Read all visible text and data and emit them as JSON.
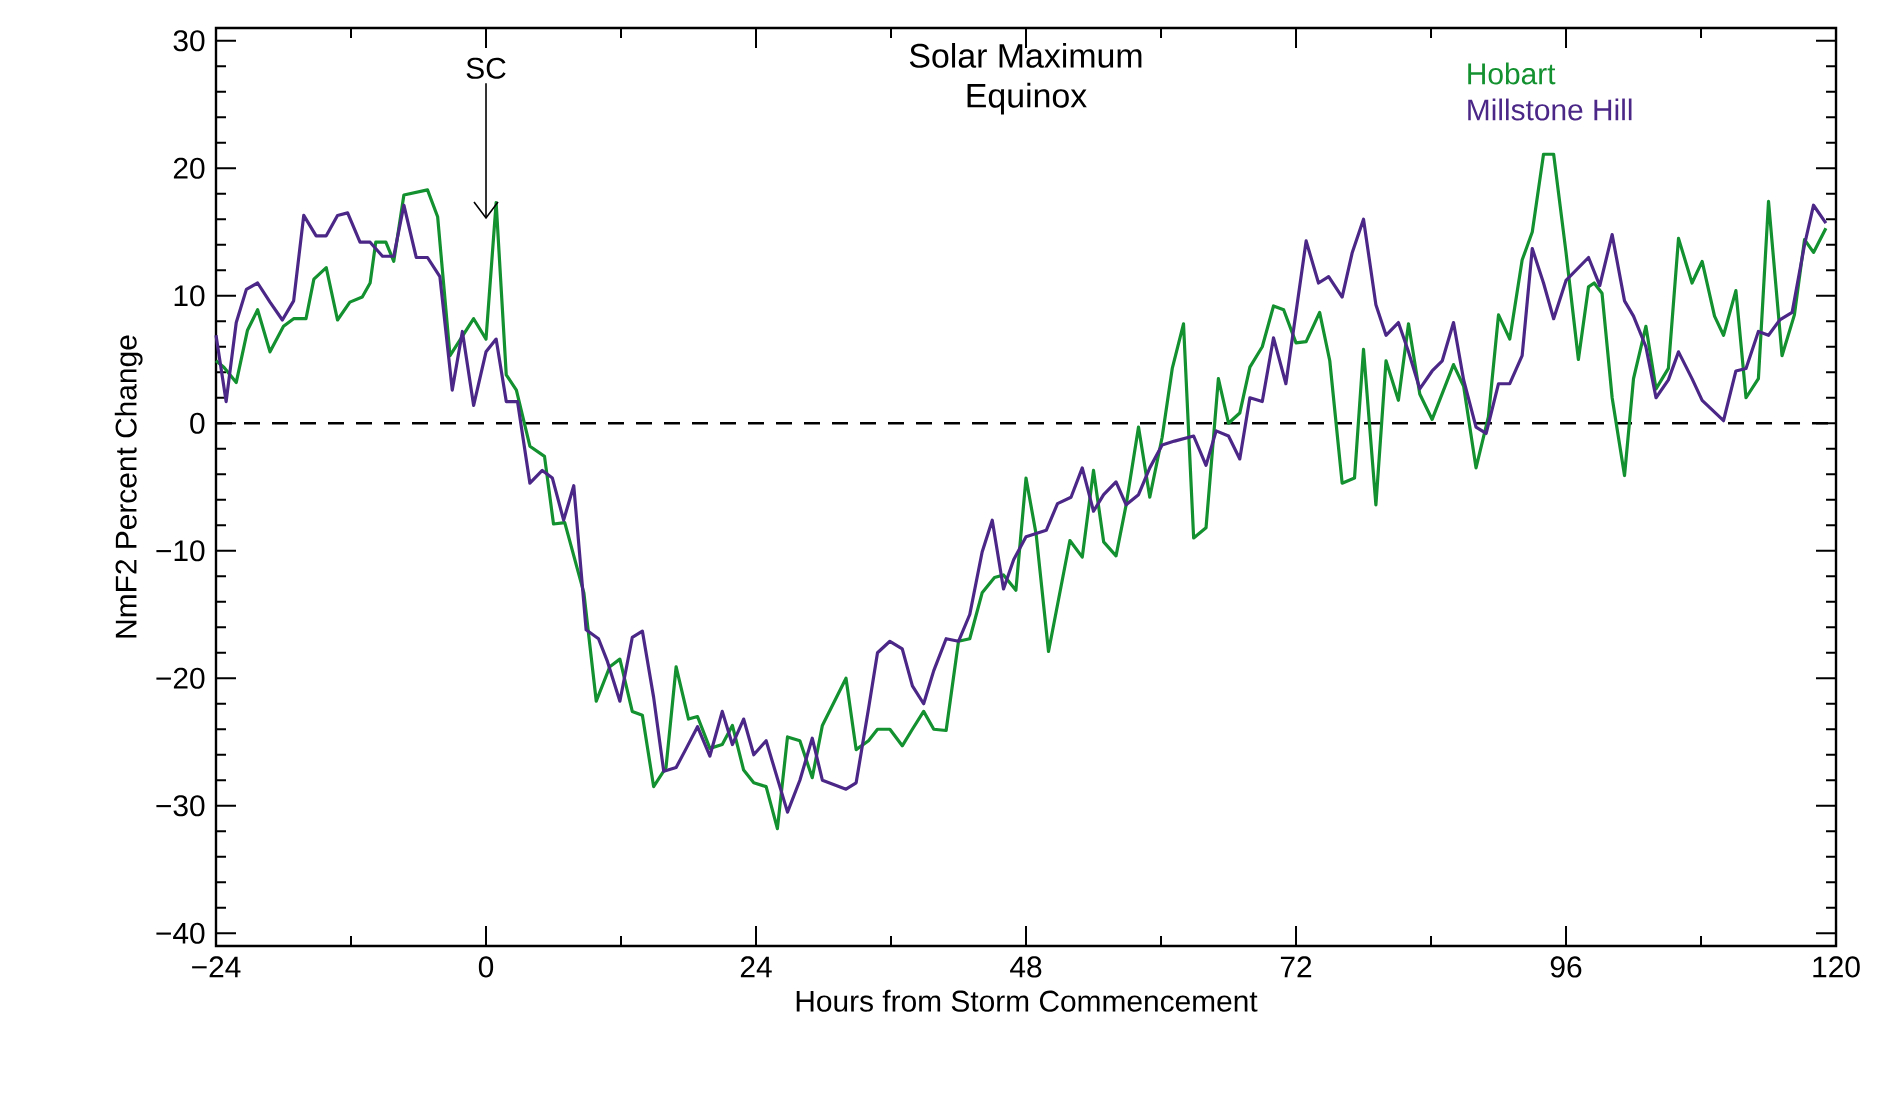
{
  "chart_data": {
    "type": "line",
    "title": "Solar Maximum",
    "subtitle": "Equinox",
    "xlabel": "Hours from Storm Commencement",
    "ylabel": "NmF2 Percent Change",
    "xlim": [
      -24,
      120
    ],
    "xticks": [
      {
        "value": -24,
        "label": "−24"
      },
      0,
      24,
      48,
      72,
      96,
      120
    ],
    "ylim": [
      -41,
      31
    ],
    "yticks": [
      {
        "value": -40,
        "label": "−40"
      },
      {
        "value": -30,
        "label": "−30"
      },
      {
        "value": -20,
        "label": "−20"
      },
      {
        "value": -10,
        "label": "−10"
      },
      0,
      10,
      20,
      30
    ],
    "legend": "top right",
    "grid": false,
    "line_style": "solid",
    "marker": "none",
    "ref_lines": [
      {
        "axis": "y",
        "value": 0,
        "line_style": "dashed",
        "color": "#000000"
      }
    ],
    "annotations": [
      {
        "text": "SC",
        "x": 0,
        "y": 16
      }
    ],
    "series": [
      {
        "name": "Hobart",
        "color": "#13902f",
        "x": [
          -24,
          -23.3,
          -22.2,
          -21.2,
          -20.3,
          -19.2,
          -18,
          -17.1,
          -16,
          -15.3,
          -14.2,
          -13.2,
          -12.1,
          -11,
          -10.3,
          -9.8,
          -8.9,
          -8.2,
          -7.3,
          -5.2,
          -4.3,
          -3.2,
          -1.1,
          0,
          0.9,
          1.8,
          2.7,
          3.9,
          5.2,
          6,
          7,
          8.7,
          9.8,
          11,
          11.9,
          13,
          13.9,
          14.9,
          16,
          16.9,
          18,
          18.8,
          19.9,
          21,
          21.9,
          22.9,
          23.8,
          24.9,
          25.9,
          26.8,
          27.9,
          29,
          29.9,
          32,
          32.9,
          34,
          34.8,
          35.9,
          37,
          37.9,
          38.9,
          39.8,
          40.9,
          42,
          43,
          44.1,
          45.2,
          46,
          47.1,
          48,
          48.9,
          50,
          51.9,
          53,
          54,
          54.9,
          56,
          56.9,
          58,
          59,
          60.1,
          61,
          62,
          62.9,
          64,
          65.1,
          66,
          67,
          67.9,
          69,
          70,
          70.9,
          72,
          72.9,
          74.1,
          75,
          76.1,
          77.2,
          78,
          79.1,
          80,
          81.1,
          82,
          83,
          84.1,
          86,
          86.9,
          88,
          89.1,
          90,
          91,
          92.1,
          93,
          94,
          94.9,
          96,
          97.1,
          98,
          98.5,
          99.2,
          100.1,
          101.2,
          102,
          103.1,
          104,
          105.1,
          106,
          107.2,
          108.1,
          109.2,
          110,
          111.1,
          112,
          113.1,
          114,
          115.2,
          116.3,
          117.2,
          118,
          119.1
        ],
        "values": [
          4.9,
          4.4,
          3.2,
          7.3,
          8.9,
          5.6,
          7.6,
          8.2,
          8.2,
          11.3,
          12.2,
          8.1,
          9.5,
          9.9,
          11,
          14.2,
          14.2,
          12.7,
          17.9,
          18.3,
          16.2,
          5.3,
          8.2,
          6.6,
          17.3,
          3.8,
          2.6,
          -1.8,
          -2.6,
          -7.9,
          -7.8,
          -13.3,
          -21.8,
          -19.1,
          -18.5,
          -22.6,
          -22.9,
          -28.5,
          -27,
          -19.1,
          -23.2,
          -23,
          -25.5,
          -25.2,
          -23.7,
          -27.2,
          -28.2,
          -28.5,
          -31.8,
          -24.6,
          -24.9,
          -27.8,
          -23.7,
          -20,
          -25.6,
          -24.9,
          -24,
          -24,
          -25.3,
          -24,
          -22.6,
          -24,
          -24.1,
          -17.1,
          -16.9,
          -13.3,
          -12.1,
          -11.9,
          -13.1,
          -4.3,
          -8.7,
          -17.9,
          -9.2,
          -10.5,
          -3.7,
          -9.3,
          -10.4,
          -6.4,
          -0.3,
          -5.8,
          -1.1,
          4.3,
          7.8,
          -9,
          -8.2,
          3.5,
          0,
          0.8,
          4.4,
          6,
          9.2,
          8.9,
          6.3,
          6.4,
          8.7,
          4.9,
          -4.7,
          -4.3,
          5.8,
          -6.4,
          4.9,
          1.8,
          7.8,
          2.3,
          0.3,
          4.6,
          2.9,
          -3.5,
          0.5,
          8.5,
          6.6,
          12.8,
          15,
          21.1,
          21.1,
          13.4,
          5,
          10.7,
          11,
          10.2,
          2,
          -4.1,
          3.5,
          7.6,
          2.7,
          4.3,
          14.5,
          11,
          12.7,
          8.4,
          6.9,
          10.4,
          2,
          3.5,
          17.4,
          5.3,
          8.5,
          14.4,
          13.4,
          15.3
        ]
      },
      {
        "name": "Millstone Hill",
        "color": "#4b2787",
        "x": [
          -24,
          -23.1,
          -22.2,
          -21.3,
          -20.3,
          -19.2,
          -18.1,
          -17.1,
          -16.2,
          -15.1,
          -14.2,
          -13.2,
          -12.3,
          -11.2,
          -10.3,
          -9.2,
          -8.2,
          -7.3,
          -6.2,
          -5.2,
          -4.1,
          -3,
          -2.1,
          -1.1,
          0,
          0.9,
          1.8,
          2.8,
          3.9,
          5,
          5.9,
          6.9,
          7.8,
          8.9,
          10,
          10.8,
          11.9,
          13,
          13.9,
          14.9,
          15.8,
          16.9,
          17.8,
          18.8,
          19.9,
          21,
          21.9,
          22.9,
          23.8,
          24.9,
          26.8,
          27.9,
          29,
          29.9,
          32,
          32.9,
          34,
          34.8,
          35.9,
          37,
          37.9,
          38.9,
          39.8,
          40.9,
          42,
          43,
          44.1,
          45,
          46,
          46.9,
          48,
          49.8,
          50.8,
          52,
          53,
          54,
          54.9,
          56,
          56.9,
          58,
          59,
          60.1,
          61.2,
          62.9,
          64,
          64.9,
          66,
          67,
          67.9,
          69,
          70,
          71.1,
          72.9,
          74,
          74.9,
          76.1,
          77,
          78,
          79.1,
          80,
          81.1,
          82,
          83,
          84.1,
          85,
          86,
          86.9,
          88,
          88.9,
          90,
          91,
          92.1,
          93,
          94,
          94.9,
          96,
          98,
          99,
          100.1,
          101.2,
          102,
          103.1,
          104,
          105.1,
          106,
          107.2,
          108.1,
          110,
          111.1,
          112,
          113.1,
          114,
          115,
          116.1,
          117.2,
          118,
          119.1
        ],
        "values": [
          6.9,
          1.7,
          7.9,
          10.5,
          11,
          9.5,
          8.1,
          9.6,
          16.3,
          14.7,
          14.7,
          16.3,
          16.5,
          14.2,
          14.2,
          13.1,
          13.1,
          17.1,
          13,
          13,
          11.5,
          2.6,
          7.2,
          1.4,
          5.6,
          6.6,
          1.7,
          1.7,
          -4.7,
          -3.7,
          -4.3,
          -7.6,
          -4.9,
          -16.2,
          -16.9,
          -18.7,
          -21.8,
          -16.8,
          -16.3,
          -21.5,
          -27.3,
          -27,
          -25.5,
          -23.8,
          -26.1,
          -22.6,
          -25.2,
          -23.2,
          -26,
          -24.9,
          -30.5,
          -28,
          -24.7,
          -28,
          -28.7,
          -28.2,
          -22.4,
          -18,
          -17.1,
          -17.7,
          -20.6,
          -22,
          -19.4,
          -16.9,
          -17.1,
          -15,
          -10.1,
          -7.6,
          -13,
          -10.7,
          -8.9,
          -8.4,
          -6.3,
          -5.8,
          -3.5,
          -6.9,
          -5.6,
          -4.6,
          -6.4,
          -5.6,
          -3.5,
          -1.7,
          -1.4,
          -1,
          -3.3,
          -0.6,
          -1,
          -2.8,
          2,
          1.7,
          6.7,
          3.1,
          14.3,
          11,
          11.5,
          9.9,
          13.4,
          16,
          9.3,
          6.9,
          7.9,
          5.6,
          2.7,
          4.1,
          4.9,
          7.9,
          3.4,
          -0.3,
          -0.8,
          3.1,
          3.1,
          5.3,
          13.7,
          11,
          8.2,
          11.2,
          13,
          10.8,
          14.8,
          9.6,
          8.4,
          6,
          2,
          3.4,
          5.6,
          3.5,
          1.8,
          0.2,
          4.1,
          4.3,
          7.2,
          6.9,
          8.1,
          8.7,
          14,
          17.1,
          15.7
        ]
      }
    ]
  }
}
